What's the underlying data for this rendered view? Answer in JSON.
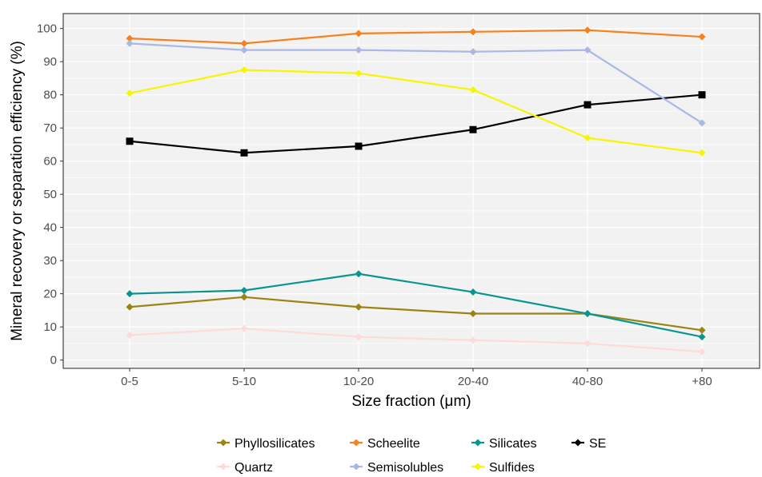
{
  "chart_data": {
    "type": "line",
    "title": "",
    "xlabel": "Size fraction (μm)",
    "ylabel": "Mineral recovery or separation efficiency (%)",
    "categories": [
      "0-5",
      "5-10",
      "10-20",
      "20-40",
      "40-80",
      "+80"
    ],
    "yticks": [
      0,
      10,
      20,
      30,
      40,
      50,
      60,
      70,
      80,
      90,
      100
    ],
    "ylim": [
      -2.5,
      104.5
    ],
    "grid": true,
    "legend_position": "bottom",
    "series": [
      {
        "name": "Phyllosilicates",
        "color": "#9a8414",
        "marker": "diamond",
        "values": [
          16,
          19,
          16,
          14,
          14,
          9
        ]
      },
      {
        "name": "Scheelite",
        "color": "#f5821f",
        "marker": "diamond",
        "values": [
          97,
          95.5,
          98.5,
          99,
          99.5,
          97.5
        ]
      },
      {
        "name": "Silicates",
        "color": "#0b9590",
        "marker": "diamond",
        "values": [
          20,
          21,
          26,
          20.5,
          14,
          7
        ]
      },
      {
        "name": "SE",
        "color": "#000000",
        "marker": "square",
        "values": [
          66,
          62.5,
          64.5,
          69.5,
          77,
          80
        ]
      },
      {
        "name": "Quartz",
        "color": "#fddbd9",
        "marker": "diamond",
        "values": [
          7.5,
          9.5,
          7,
          6,
          5,
          2.5
        ]
      },
      {
        "name": "Semisolubles",
        "color": "#aab8e4",
        "marker": "diamond",
        "values": [
          95.5,
          93.5,
          93.5,
          93,
          93.5,
          71.5
        ]
      },
      {
        "name": "Sulfides",
        "color": "#f6f600",
        "marker": "diamond",
        "values": [
          80.5,
          87.5,
          86.5,
          81.5,
          67,
          62.5
        ]
      }
    ]
  }
}
